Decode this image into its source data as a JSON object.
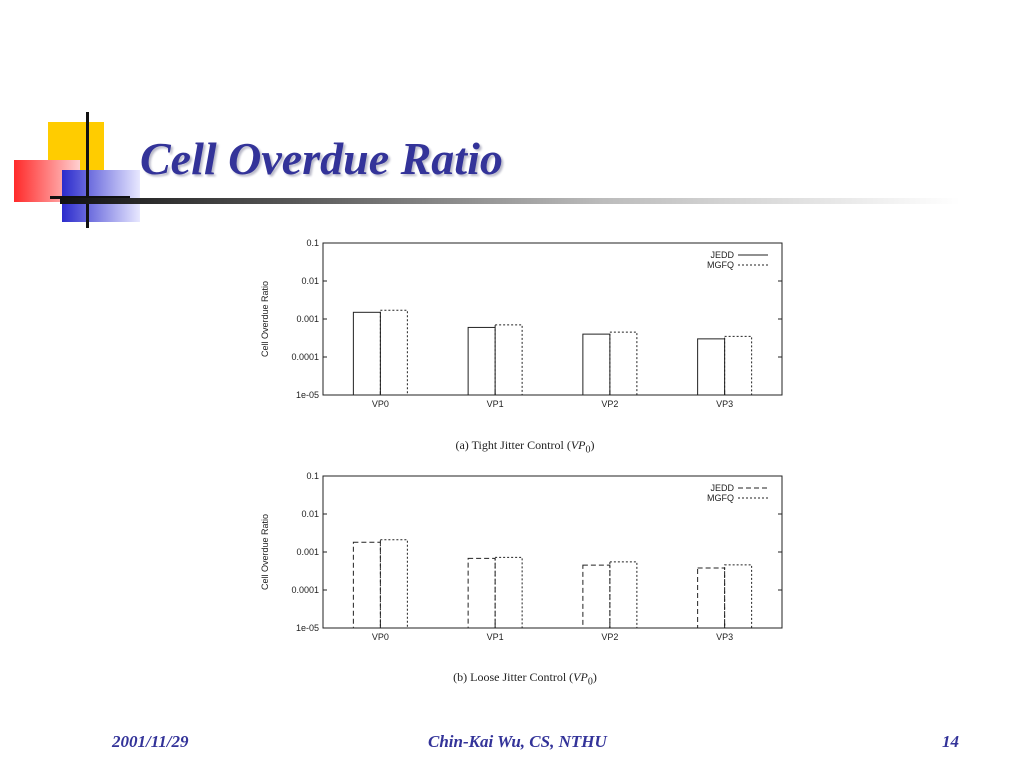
{
  "slide": {
    "title": "Cell Overdue Ratio",
    "footer_date": "2001/11/29",
    "footer_author": "Chin-Kai Wu, CS, NTHU",
    "footer_page": "14"
  },
  "colors": {
    "title": "#333399",
    "deco_yellow": "#ffcc00",
    "deco_red": "#ff3333",
    "deco_blue": "#3333cc"
  },
  "chart_data": [
    {
      "type": "bar",
      "title": "",
      "caption_text": "(a) Tight Jitter Control (",
      "caption_var": "VP",
      "caption_sub": "0",
      "caption_close": ")",
      "xlabel": "",
      "ylabel": "Cell Overdue Ratio",
      "yscale": "log",
      "ylim": [
        1e-05,
        0.1
      ],
      "yticks": [
        "1e-05",
        "0.0001",
        "0.001",
        "0.01",
        "0.1"
      ],
      "categories": [
        "VP0",
        "VP1",
        "VP2",
        "VP3"
      ],
      "legend_position": "top-right",
      "series": [
        {
          "name": "JEDD",
          "style": "solid",
          "values": [
            0.0015,
            0.0006,
            0.0004,
            0.0003
          ]
        },
        {
          "name": "MGFQ",
          "style": "dotted",
          "values": [
            0.0017,
            0.0007,
            0.00045,
            0.00035
          ]
        }
      ]
    },
    {
      "type": "bar",
      "title": "",
      "caption_text": "(b) Loose Jitter Control (",
      "caption_var": "VP",
      "caption_sub": "0",
      "caption_close": ")",
      "xlabel": "",
      "ylabel": "Cell Overdue Ratio",
      "yscale": "log",
      "ylim": [
        1e-05,
        0.1
      ],
      "yticks": [
        "1e-05",
        "0.0001",
        "0.001",
        "0.01",
        "0.1"
      ],
      "categories": [
        "VP0",
        "VP1",
        "VP2",
        "VP3"
      ],
      "legend_position": "top-right",
      "series": [
        {
          "name": "JEDD",
          "style": "dashed",
          "values": [
            0.0018,
            0.00068,
            0.00045,
            0.00038
          ]
        },
        {
          "name": "MGFQ",
          "style": "dotted",
          "values": [
            0.0021,
            0.00072,
            0.00055,
            0.00046
          ]
        }
      ]
    }
  ]
}
